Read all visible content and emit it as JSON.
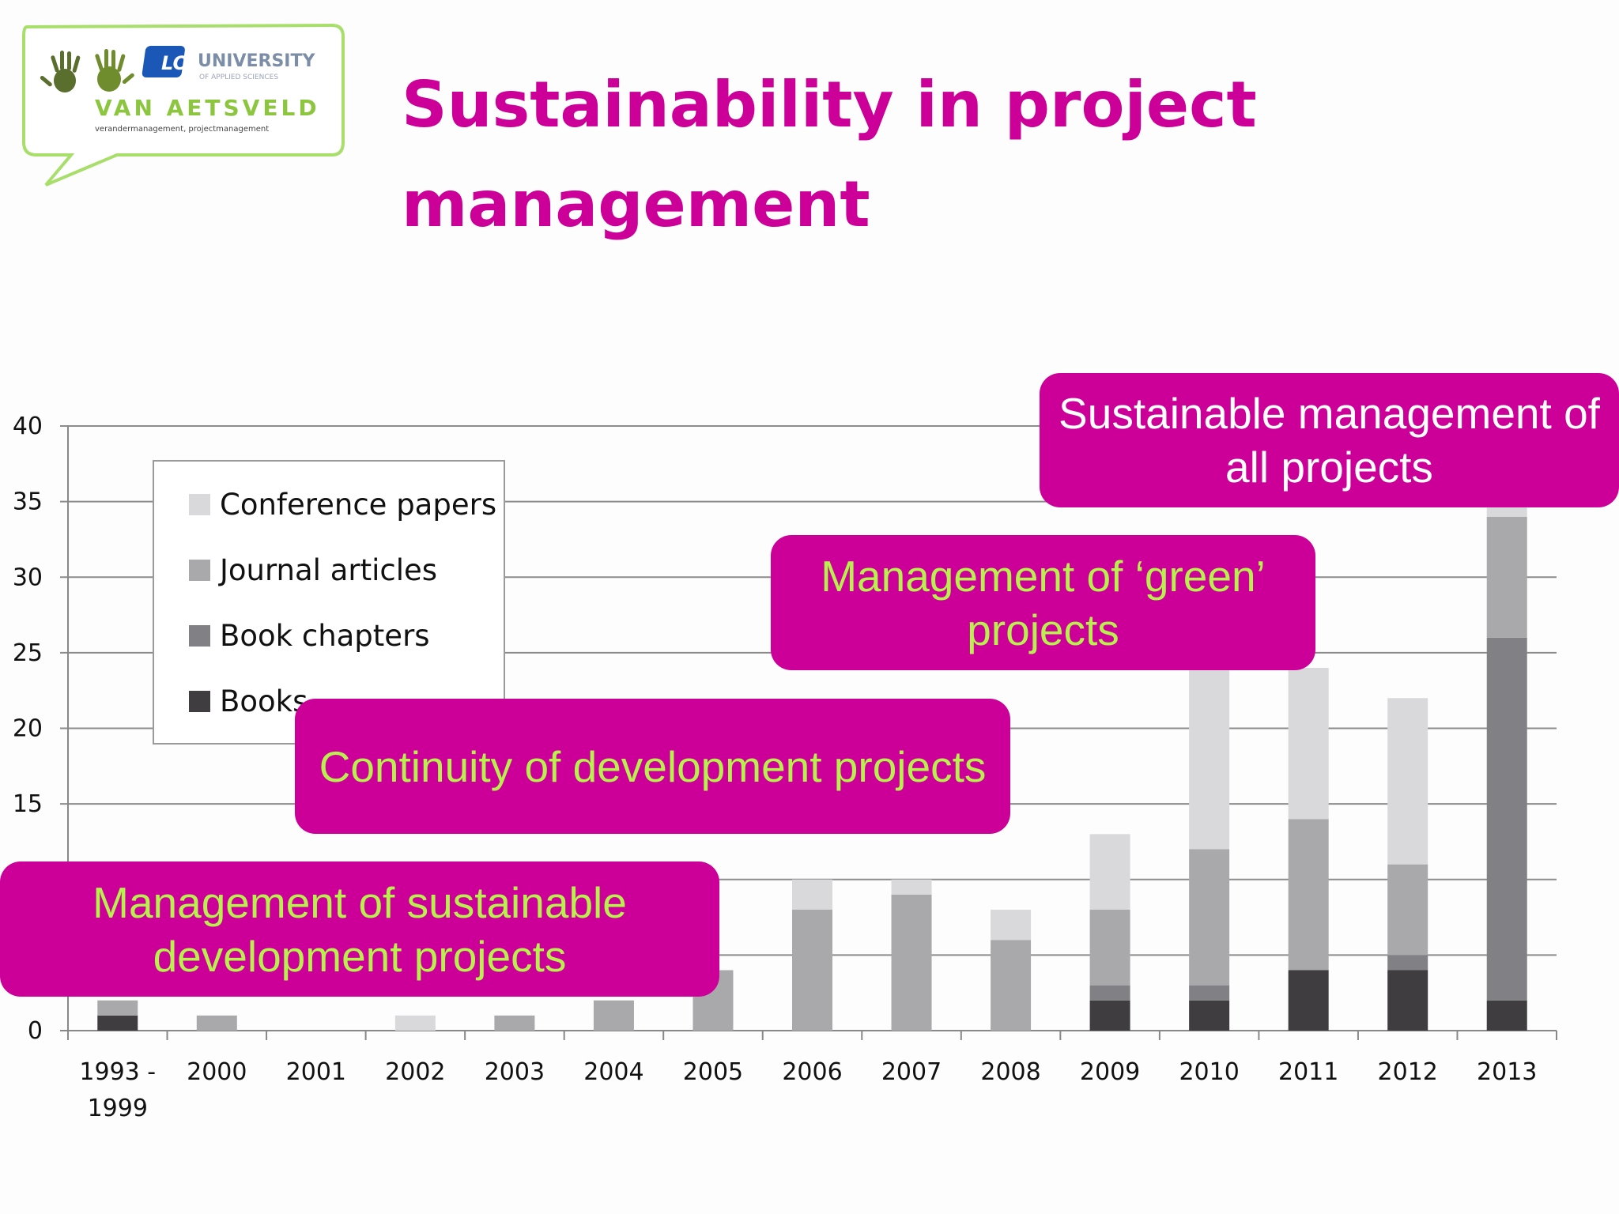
{
  "title": "Sustainability in project management",
  "logo": {
    "brand": "LOI",
    "university": "UNIVERSITY",
    "university_sub": "OF APPLIED SCIENCES",
    "company": "VAN AETSVELD",
    "tagline": "verandermanagement, projectmanagement"
  },
  "callouts": [
    {
      "text": "Management of sustainable development projects",
      "color": "#b8f04e"
    },
    {
      "text": "Continuity of development projects",
      "color": "#b8f04e"
    },
    {
      "text": "Management of ‘green’ projects",
      "color": "#b8f04e"
    },
    {
      "text": "Sustainable management of all projects",
      "color": "#ffffff"
    }
  ],
  "colors": {
    "accent": "#cc0099",
    "callout_green": "#b8f04e"
  },
  "chart_data": {
    "type": "bar",
    "stacked": true,
    "categories": [
      "1993 - 1999",
      "2000",
      "2001",
      "2002",
      "2003",
      "2004",
      "2005",
      "2006",
      "2007",
      "2008",
      "2009",
      "2010",
      "2011",
      "2012",
      "2013"
    ],
    "series": [
      {
        "name": "Books",
        "color": "#3f3d40",
        "values": [
          1,
          0,
          0,
          0,
          0,
          0,
          0,
          0,
          0,
          0,
          2,
          2,
          4,
          4,
          2
        ]
      },
      {
        "name": "Book chapters",
        "color": "#818084",
        "values": [
          0,
          0,
          0,
          0,
          0,
          0,
          0,
          0,
          0,
          0,
          1,
          1,
          0,
          1,
          24
        ]
      },
      {
        "name": "Journal articles",
        "color": "#a9a8ab",
        "values": [
          1,
          1,
          0,
          0,
          1,
          2,
          4,
          8,
          9,
          6,
          5,
          9,
          10,
          6,
          8
        ]
      },
      {
        "name": "Conference papers",
        "color": "#d9d8db",
        "values": [
          0,
          0,
          0,
          1,
          0,
          0,
          0,
          2,
          1,
          2,
          5,
          12,
          10,
          11,
          1
        ]
      }
    ],
    "legend_order": [
      "Conference papers",
      "Journal articles",
      "Book chapters",
      "Books"
    ],
    "ylim": [
      0,
      40
    ],
    "yticks": [
      0,
      15,
      20,
      25,
      30,
      35,
      40
    ],
    "grid": true,
    "xlabel": "",
    "ylabel": ""
  }
}
